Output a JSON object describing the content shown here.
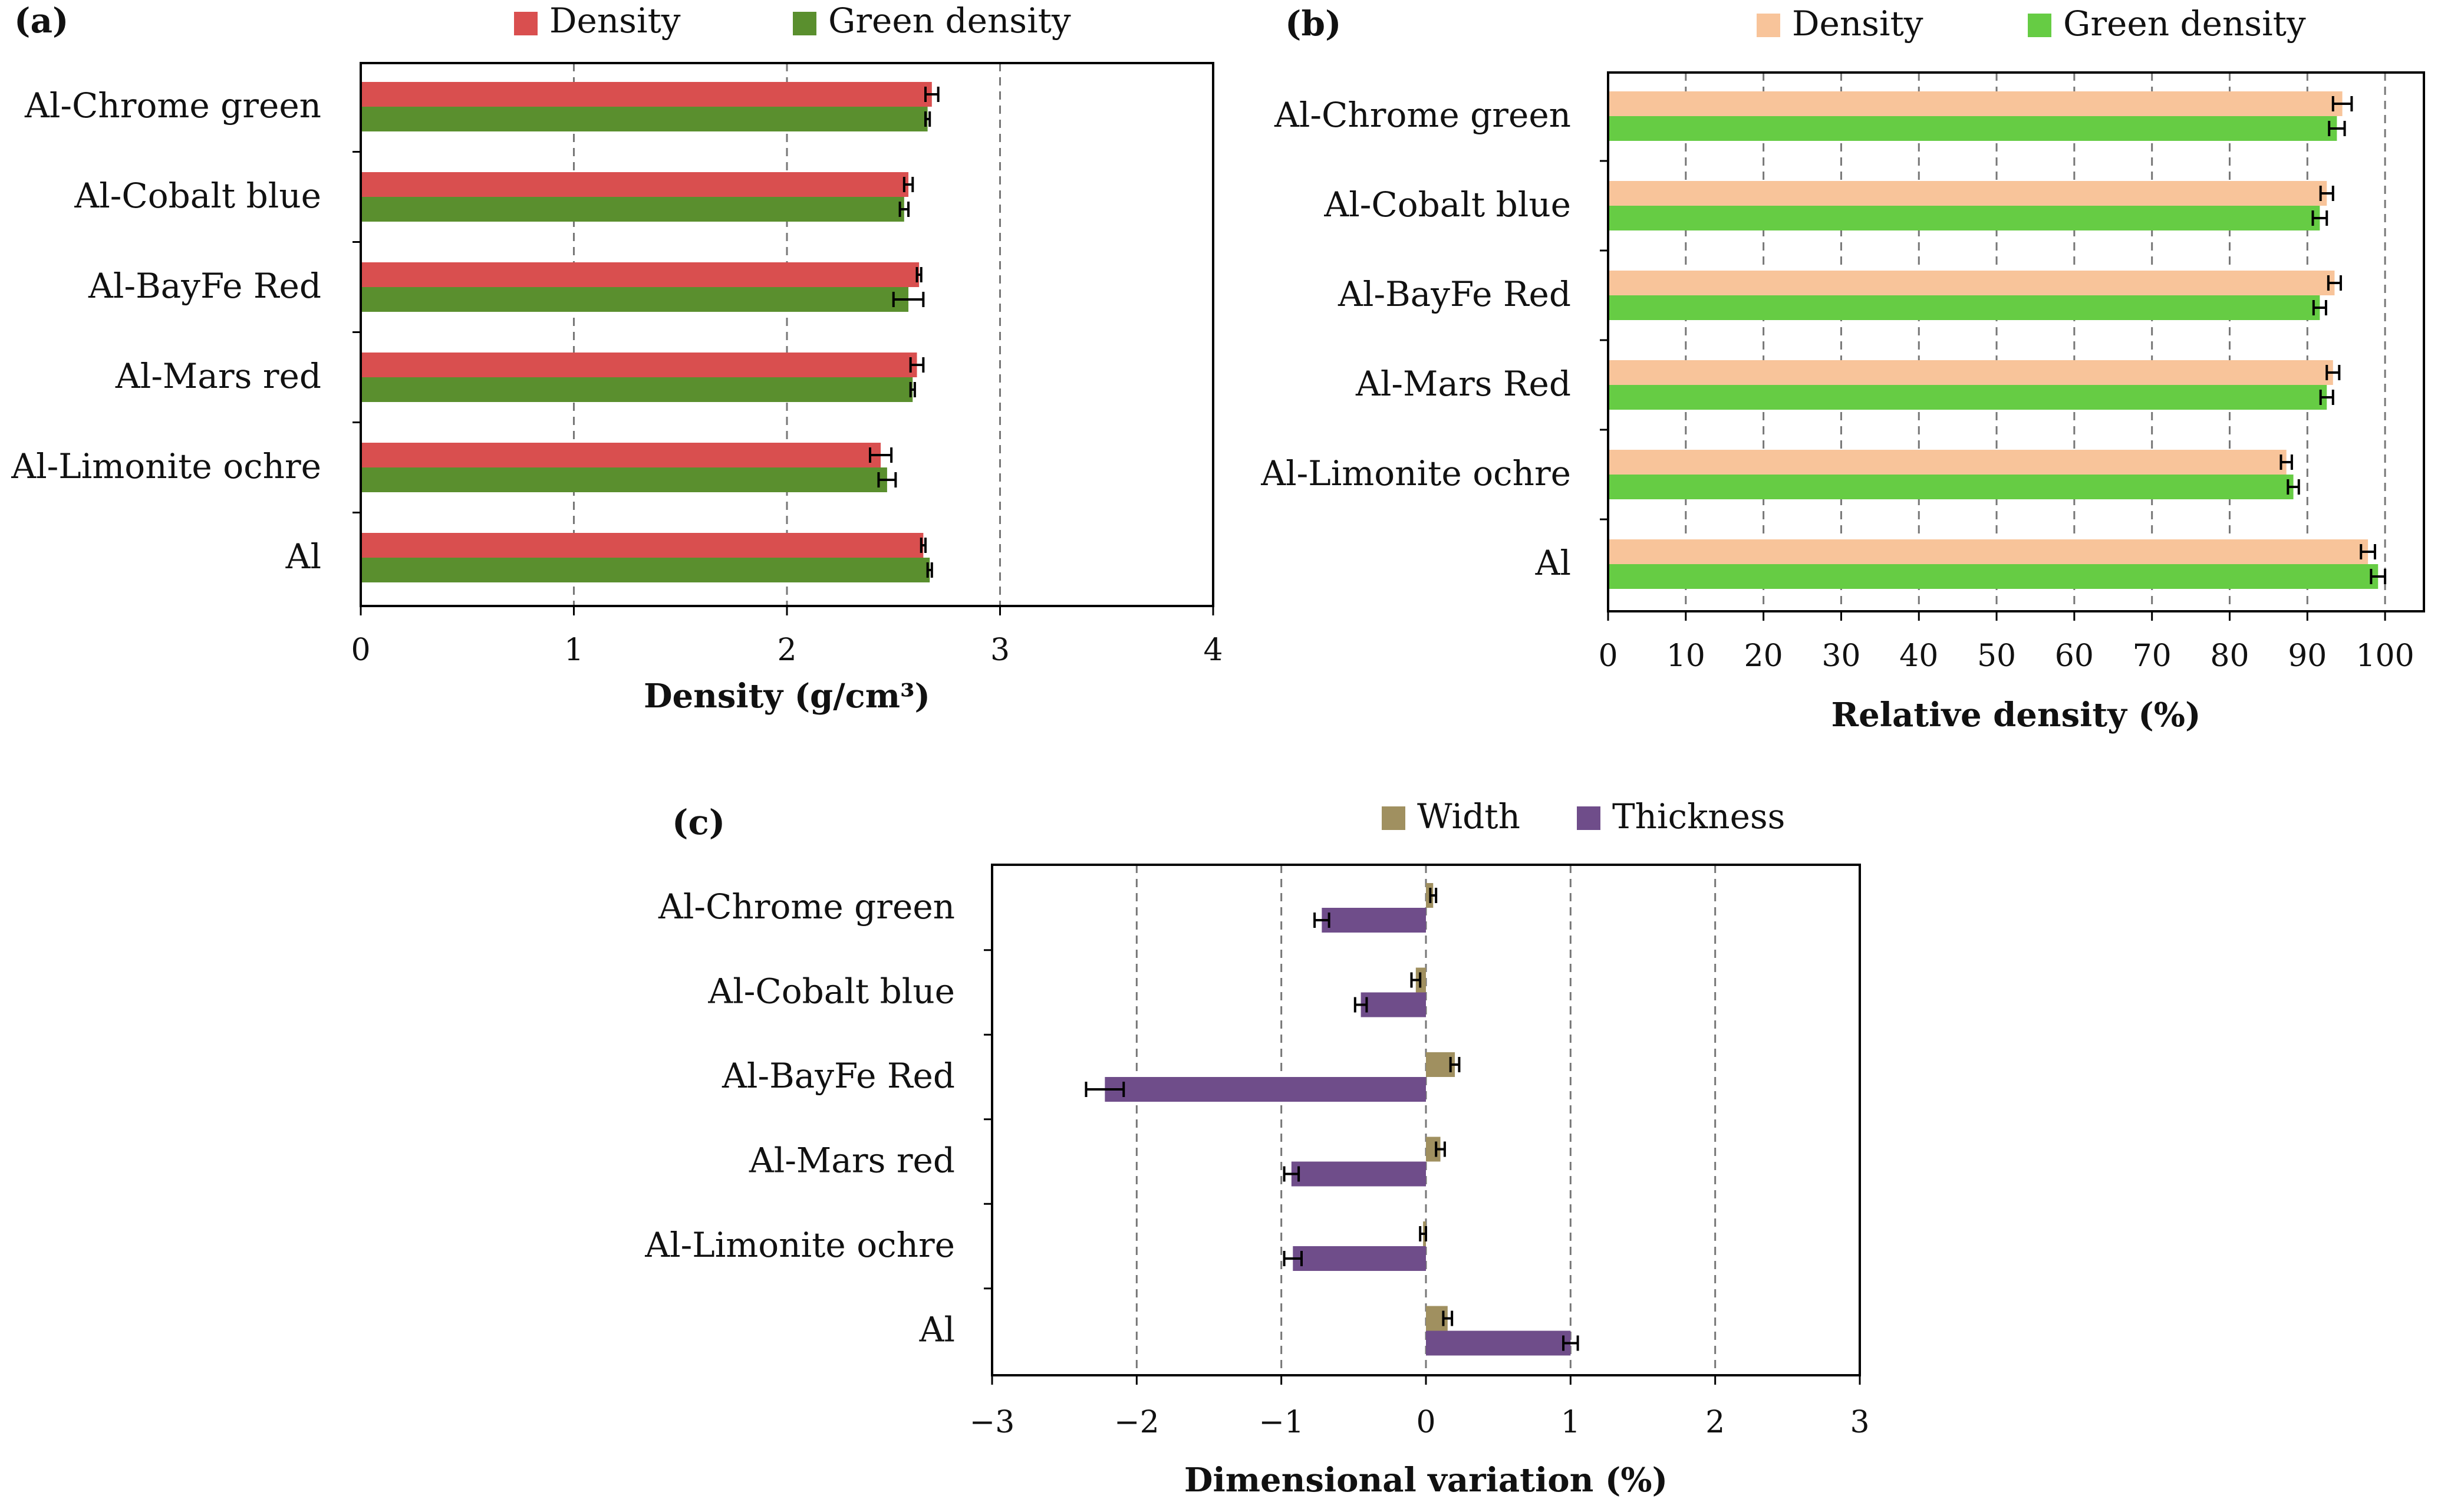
{
  "chart_data": [
    {
      "panel": "(a)",
      "type": "bar",
      "orientation": "horizontal",
      "categories": [
        "Al-Chrome green",
        "Al-Cobalt blue",
        "Al-BayFe Red",
        "Al-Mars red",
        "Al-Limonite ochre",
        "Al"
      ],
      "series": [
        {
          "name": "Density",
          "color": "#d94f4f",
          "values": [
            2.68,
            2.57,
            2.62,
            2.61,
            2.44,
            2.64
          ],
          "errors": [
            0.03,
            0.02,
            0.01,
            0.03,
            0.05,
            0.01
          ]
        },
        {
          "name": "Green density",
          "color": "#5a8f2e",
          "values": [
            2.66,
            2.55,
            2.57,
            2.59,
            2.47,
            2.67
          ],
          "errors": [
            0.01,
            0.02,
            0.07,
            0.01,
            0.04,
            0.01
          ]
        }
      ],
      "xlabel": "Density (g/cm³)",
      "xlim": [
        0,
        4
      ],
      "xticks": [
        "0",
        "1",
        "2",
        "3",
        "4"
      ],
      "grid": "vertical dashed"
    },
    {
      "panel": "(b)",
      "type": "bar",
      "orientation": "horizontal",
      "categories": [
        "Al-Chrome green",
        "Al-Cobalt blue",
        "Al-BayFe Red",
        "Al-Mars Red",
        "Al-Limonite ochre",
        "Al"
      ],
      "series": [
        {
          "name": "Density",
          "color": "#f8c49a",
          "values": [
            94.5,
            92.5,
            93.5,
            93.3,
            87.3,
            97.8
          ],
          "errors": [
            1.2,
            0.8,
            0.8,
            0.8,
            0.7,
            0.9
          ]
        },
        {
          "name": "Green density",
          "color": "#66cc44",
          "values": [
            93.8,
            91.6,
            91.6,
            92.5,
            88.2,
            99.1
          ],
          "errors": [
            1.0,
            0.9,
            0.8,
            0.8,
            0.7,
            0.9
          ]
        }
      ],
      "xlabel": "Relative density (%)",
      "xlim": [
        0,
        105
      ],
      "xticks": [
        "0",
        "10",
        "20",
        "30",
        "40",
        "50",
        "60",
        "70",
        "80",
        "90",
        "100"
      ],
      "grid": "vertical dashed"
    },
    {
      "panel": "(c)",
      "type": "bar",
      "orientation": "horizontal",
      "categories": [
        "Al-Chrome green",
        "Al-Cobalt blue",
        "Al-BayFe Red",
        "Al-Mars red",
        "Al-Limonite ochre",
        "Al"
      ],
      "series": [
        {
          "name": "Width",
          "color": "#a09060",
          "values": [
            0.05,
            -0.07,
            0.2,
            0.1,
            -0.02,
            0.15
          ],
          "errors": [
            0.02,
            0.03,
            0.03,
            0.03,
            0.02,
            0.03
          ]
        },
        {
          "name": "Thickness",
          "color": "#6f4d8a",
          "values": [
            -0.72,
            -0.45,
            -2.22,
            -0.93,
            -0.92,
            1.0
          ],
          "errors": [
            0.05,
            0.04,
            0.13,
            0.05,
            0.06,
            0.05
          ]
        }
      ],
      "xlabel": "Dimensional  variation (%)",
      "xlim": [
        -3,
        3
      ],
      "xticks": [
        "−3",
        "−2",
        "−1",
        "0",
        "1",
        "2",
        "3"
      ],
      "grid": "vertical dashed"
    }
  ]
}
